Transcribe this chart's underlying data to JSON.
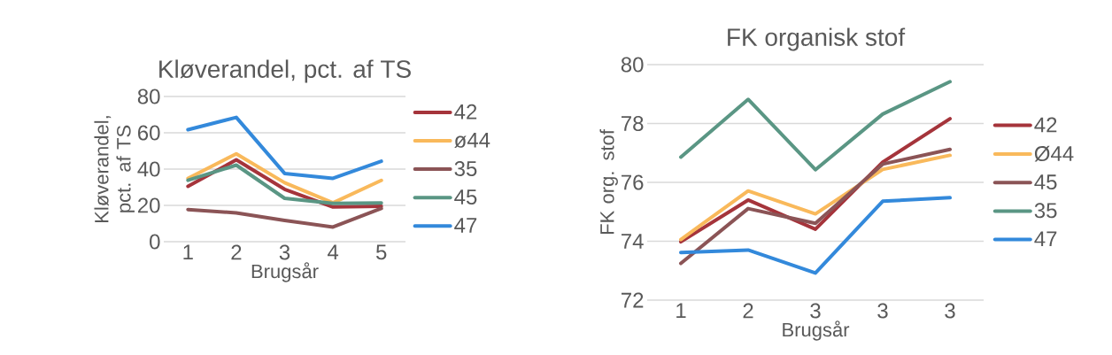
{
  "chart_data": [
    {
      "type": "line",
      "title": "Kløverandel, pct. af TS",
      "xlabel": "Brugsår",
      "ylabel": "Kløverandel, pct. af TS",
      "categories": [
        "1",
        "2",
        "3",
        "4",
        "5"
      ],
      "ylim": [
        0,
        80
      ],
      "yticks": [
        0,
        20,
        40,
        60,
        80
      ],
      "grid": "y",
      "legend": "right",
      "series": [
        {
          "name": "42",
          "color": "#a5343b",
          "values": [
            30.5,
            45.1,
            28.9,
            19.1,
            19.5
          ]
        },
        {
          "name": "ø44",
          "color": "#f9b95b",
          "values": [
            34.9,
            48.4,
            32.5,
            21.4,
            33.8
          ]
        },
        {
          "name": "35",
          "color": "#8b5456",
          "values": [
            17.7,
            15.9,
            11.7,
            8.1,
            18.3
          ]
        },
        {
          "name": "45",
          "color": "#5a9684",
          "values": [
            33.8,
            42.2,
            23.9,
            21.1,
            21.4
          ]
        },
        {
          "name": "47",
          "color": "#3389db",
          "values": [
            61.7,
            68.5,
            37.6,
            34.9,
            44.3
          ]
        }
      ]
    },
    {
      "type": "line",
      "title": "FK organisk stof",
      "xlabel": "Brugsår",
      "ylabel": "FK org. stof",
      "categories": [
        "1",
        "2",
        "3",
        "3",
        "3"
      ],
      "ylim": [
        72,
        80
      ],
      "yticks": [
        72,
        74,
        76,
        78,
        80
      ],
      "grid": "y",
      "legend": "right",
      "series": [
        {
          "name": "42",
          "color": "#a5343b",
          "values": [
            73.98,
            75.4,
            74.41,
            76.69,
            78.16
          ]
        },
        {
          "name": "Ø44",
          "color": "#f9b95b",
          "values": [
            74.06,
            75.71,
            74.93,
            76.44,
            76.92
          ]
        },
        {
          "name": "45",
          "color": "#8b5456",
          "values": [
            73.25,
            75.11,
            74.61,
            76.62,
            77.12
          ]
        },
        {
          "name": "35",
          "color": "#5a9684",
          "values": [
            76.86,
            78.82,
            76.43,
            78.32,
            79.42
          ]
        },
        {
          "name": "47",
          "color": "#3389db",
          "values": [
            73.62,
            73.7,
            72.92,
            75.36,
            75.48
          ]
        }
      ]
    }
  ]
}
